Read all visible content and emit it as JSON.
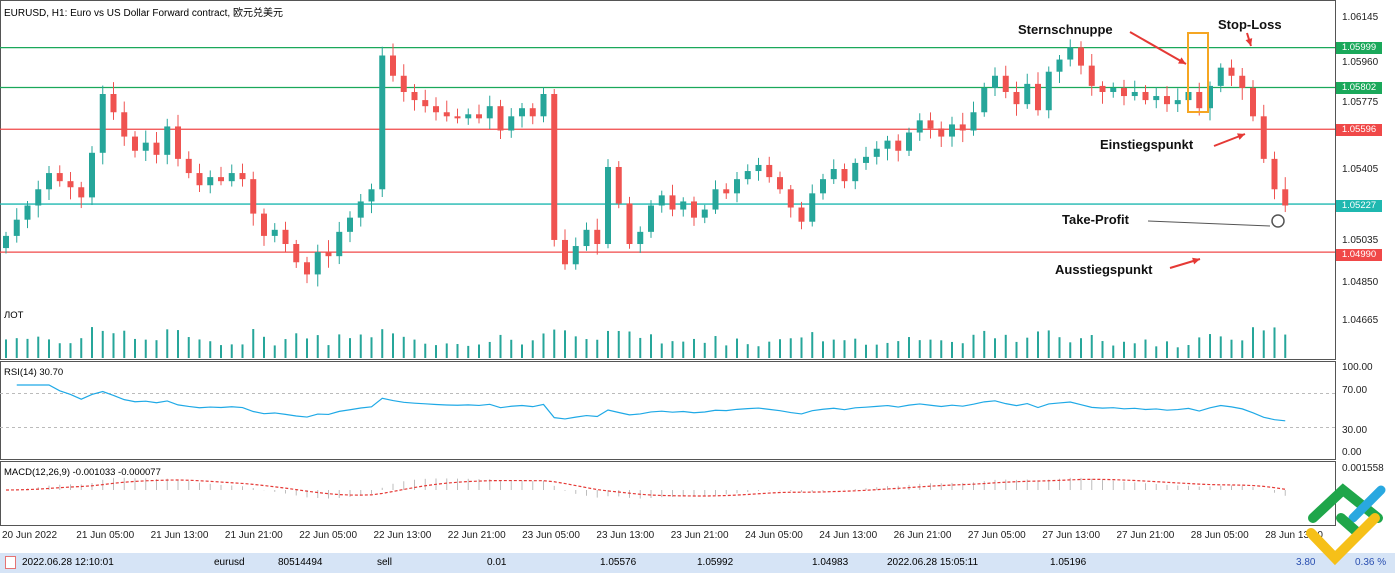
{
  "header": {
    "title": "EURUSD, H1:  Euro vs US Dollar Forward contract, 欧元兑美元"
  },
  "colors": {
    "bull": "#26a69a",
    "bear": "#ef5350",
    "green_line": "#1aa85a",
    "red_line": "#f04848",
    "teal_line": "#1fb8b0",
    "rsi": "#1fa9e6",
    "macd_signal": "#e53935",
    "annotation_box": "#f5a623"
  },
  "price_axis": [
    "1.06145",
    "1.05960",
    "1.05775",
    "1.05405",
    "1.05035",
    "1.04850",
    "1.04665"
  ],
  "levels": [
    {
      "price": 1.05999,
      "label": "1.05999",
      "color": "#1aa85a"
    },
    {
      "price": 1.05802,
      "label": "1.05802",
      "color": "#1aa85a"
    },
    {
      "price": 1.05596,
      "label": "1.05596",
      "color": "#f04848"
    },
    {
      "price": 1.05227,
      "label": "1.05227",
      "color": "#1fb8b0"
    },
    {
      "price": 1.0499,
      "label": "1.04990",
      "color": "#f04848"
    }
  ],
  "annotations": {
    "shooting_star": "Sternschnuppe",
    "stop_loss": "Stop-Loss",
    "entry": "Einstiegspunkt",
    "take_profit": "Take-Profit",
    "exit": "Ausstiegspunkt"
  },
  "volume_label": "ЛОТ",
  "rsi": {
    "label": "RSI(14) 30.70",
    "axis": [
      "100.00",
      "70.00",
      "30.00",
      "0.00"
    ]
  },
  "macd": {
    "label": "MACD(12,26,9) -0.001033 -0.000077",
    "axis_top": "0.001558"
  },
  "time_axis": [
    "20 Jun 2022",
    "21 Jun 05:00",
    "21 Jun 13:00",
    "21 Jun 21:00",
    "22 Jun 05:00",
    "22 Jun 13:00",
    "22 Jun 21:00",
    "23 Jun 05:00",
    "23 Jun 13:00",
    "23 Jun 21:00",
    "24 Jun 05:00",
    "24 Jun 13:00",
    "26 Jun 21:00",
    "27 Jun 05:00",
    "27 Jun 13:00",
    "27 Jun 21:00",
    "28 Jun 05:00",
    "28 Jun 13:00"
  ],
  "trade": {
    "open_time": "2022.06.28 12:10:01",
    "symbol": "eurusd",
    "ticket": "80514494",
    "type": "sell",
    "volume": "0.01",
    "open_price": "1.05576",
    "sl": "1.05992",
    "tp": "1.04983",
    "close_time": "2022.06.28 15:05:11",
    "close_price": "1.05196",
    "profit": "3.80",
    "percent": "0.36 %"
  },
  "chart_data": {
    "type": "candlestick",
    "symbol": "EURUSD",
    "timeframe": "H1",
    "ylim": [
      1.0462,
      1.0622
    ],
    "closes": [
      1.0507,
      1.0515,
      1.0522,
      1.053,
      1.0538,
      1.0534,
      1.0531,
      1.0526,
      1.0548,
      1.0577,
      1.0568,
      1.0556,
      1.0549,
      1.0553,
      1.0547,
      1.0561,
      1.0545,
      1.0538,
      1.0532,
      1.0536,
      1.0534,
      1.0538,
      1.0535,
      1.0518,
      1.0507,
      1.051,
      1.0503,
      1.0494,
      1.0488,
      1.0499,
      1.0497,
      1.0509,
      1.0516,
      1.0524,
      1.053,
      1.0596,
      1.0586,
      1.0578,
      1.0574,
      1.0571,
      1.0568,
      1.0566,
      1.0565,
      1.0567,
      1.0565,
      1.0571,
      1.0559,
      1.0566,
      1.057,
      1.0566,
      1.0577,
      1.0505,
      1.0493,
      1.0502,
      1.051,
      1.0503,
      1.0541,
      1.0523,
      1.0503,
      1.0509,
      1.0522,
      1.0527,
      1.052,
      1.0524,
      1.0516,
      1.052,
      1.053,
      1.0528,
      1.0535,
      1.0539,
      1.0542,
      1.0536,
      1.053,
      1.0521,
      1.0514,
      1.0528,
      1.0535,
      1.054,
      1.0534,
      1.0543,
      1.0546,
      1.055,
      1.0554,
      1.0549,
      1.0558,
      1.0564,
      1.056,
      1.0556,
      1.0562,
      1.0559,
      1.0568,
      1.058,
      1.0586,
      1.0578,
      1.0572,
      1.0582,
      1.0569,
      1.0588,
      1.0594,
      1.06,
      1.0591,
      1.0581,
      1.0578,
      1.058,
      1.0576,
      1.0578,
      1.0574,
      1.0576,
      1.0572,
      1.0574,
      1.0578,
      1.057,
      1.0581,
      1.059,
      1.0586,
      1.058,
      1.0566,
      1.0545,
      1.053,
      1.0522
    ]
  }
}
